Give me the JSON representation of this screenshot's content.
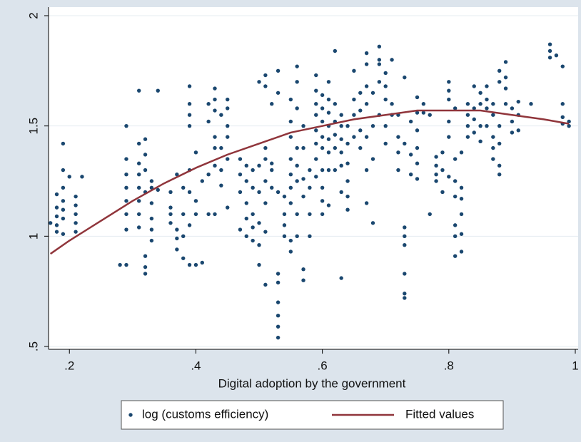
{
  "chart_data": {
    "type": "scatter",
    "xlabel": "Digital adoption by the government",
    "xlim": [
      0.167,
      1.0
    ],
    "ylim": [
      0.5,
      2
    ],
    "xticks": [
      {
        "value": 0.2,
        "label": ".2"
      },
      {
        "value": 0.4,
        "label": ".4"
      },
      {
        "value": 0.6,
        "label": ".6"
      },
      {
        "value": 0.8,
        "label": ".8"
      },
      1
    ],
    "yticks": [
      {
        "value": 0.5,
        "label": ".5"
      },
      1,
      1.5,
      2
    ],
    "grid": true,
    "legend": "bottom",
    "series": [
      {
        "name": "log (customs efficiency)",
        "type": "scatter",
        "color": "#1a476f",
        "x": [
          0.17,
          0.18,
          0.18,
          0.18,
          0.18,
          0.18,
          0.19,
          0.19,
          0.19,
          0.19,
          0.19,
          0.19,
          0.19,
          0.2,
          0.21,
          0.21,
          0.21,
          0.21,
          0.21,
          0.22,
          0.28,
          0.29,
          0.29,
          0.29,
          0.29,
          0.29,
          0.29,
          0.29,
          0.29,
          0.31,
          0.31,
          0.31,
          0.31,
          0.31,
          0.31,
          0.31,
          0.31,
          0.32,
          0.32,
          0.32,
          0.32,
          0.32,
          0.32,
          0.32,
          0.33,
          0.33,
          0.33,
          0.33,
          0.33,
          0.33,
          0.34,
          0.34,
          0.36,
          0.36,
          0.36,
          0.36,
          0.37,
          0.37,
          0.37,
          0.37,
          0.38,
          0.38,
          0.38,
          0.38,
          0.39,
          0.39,
          0.39,
          0.39,
          0.39,
          0.39,
          0.39,
          0.39,
          0.4,
          0.4,
          0.4,
          0.4,
          0.41,
          0.41,
          0.42,
          0.42,
          0.42,
          0.42,
          0.43,
          0.43,
          0.43,
          0.43,
          0.43,
          0.43,
          0.43,
          0.44,
          0.44,
          0.44,
          0.44,
          0.45,
          0.45,
          0.45,
          0.45,
          0.45,
          0.45,
          0.47,
          0.47,
          0.47,
          0.47,
          0.48,
          0.48,
          0.48,
          0.48,
          0.48,
          0.49,
          0.49,
          0.49,
          0.49,
          0.49,
          0.5,
          0.5,
          0.5,
          0.5,
          0.5,
          0.5,
          0.51,
          0.51,
          0.51,
          0.51,
          0.51,
          0.51,
          0.51,
          0.51,
          0.52,
          0.52,
          0.52,
          0.52,
          0.53,
          0.53,
          0.53,
          0.53,
          0.53,
          0.53,
          0.53,
          0.53,
          0.53,
          0.54,
          0.54,
          0.54,
          0.54,
          0.55,
          0.55,
          0.55,
          0.55,
          0.55,
          0.55,
          0.55,
          0.55,
          0.55,
          0.56,
          0.56,
          0.56,
          0.56,
          0.56,
          0.56,
          0.56,
          0.56,
          0.57,
          0.57,
          0.57,
          0.57,
          0.57,
          0.57,
          0.58,
          0.58,
          0.58,
          0.58,
          0.59,
          0.59,
          0.59,
          0.59,
          0.59,
          0.59,
          0.59,
          0.59,
          0.6,
          0.6,
          0.6,
          0.6,
          0.6,
          0.6,
          0.6,
          0.6,
          0.6,
          0.61,
          0.61,
          0.61,
          0.61,
          0.61,
          0.61,
          0.61,
          0.61,
          0.62,
          0.62,
          0.62,
          0.62,
          0.62,
          0.62,
          0.63,
          0.63,
          0.63,
          0.63,
          0.63,
          0.63,
          0.63,
          0.64,
          0.64,
          0.64,
          0.64,
          0.64,
          0.64,
          0.65,
          0.65,
          0.65,
          0.65,
          0.66,
          0.66,
          0.66,
          0.66,
          0.67,
          0.67,
          0.67,
          0.67,
          0.67,
          0.67,
          0.67,
          0.68,
          0.68,
          0.68,
          0.68,
          0.69,
          0.69,
          0.69,
          0.69,
          0.69,
          0.7,
          0.7,
          0.7,
          0.7,
          0.7,
          0.71,
          0.71,
          0.71,
          0.72,
          0.72,
          0.72,
          0.72,
          0.73,
          0.73,
          0.73,
          0.73,
          0.73,
          0.73,
          0.73,
          0.73,
          0.74,
          0.74,
          0.74,
          0.75,
          0.75,
          0.75,
          0.75,
          0.75,
          0.75,
          0.76,
          0.76,
          0.77,
          0.77,
          0.78,
          0.78,
          0.78,
          0.78,
          0.79,
          0.79,
          0.79,
          0.8,
          0.8,
          0.8,
          0.8,
          0.8,
          0.8,
          0.81,
          0.81,
          0.81,
          0.81,
          0.81,
          0.81,
          0.81,
          0.82,
          0.82,
          0.82,
          0.82,
          0.82,
          0.82,
          0.83,
          0.83,
          0.83,
          0.83,
          0.84,
          0.84,
          0.84,
          0.84,
          0.85,
          0.85,
          0.85,
          0.85,
          0.86,
          0.86,
          0.86,
          0.86,
          0.87,
          0.87,
          0.87,
          0.87,
          0.87,
          0.88,
          0.88,
          0.88,
          0.88,
          0.88,
          0.88,
          0.89,
          0.89,
          0.89,
          0.89,
          0.9,
          0.9,
          0.9,
          0.91,
          0.91,
          0.91,
          0.93,
          0.96,
          0.96,
          0.96,
          0.97,
          0.98,
          0.98,
          0.98,
          0.98,
          0.99,
          0.99
        ],
        "values": [
          1.06,
          1.02,
          1.05,
          1.09,
          1.13,
          1.19,
          1.08,
          1.12,
          1.16,
          1.22,
          1.3,
          1.42,
          1.01,
          1.27,
          1.02,
          1.06,
          1.1,
          1.14,
          1.18,
          1.27,
          0.87,
          0.87,
          1.03,
          1.1,
          1.16,
          1.22,
          1.28,
          1.35,
          1.5,
          1.04,
          1.1,
          1.16,
          1.22,
          1.28,
          1.33,
          1.42,
          1.66,
          0.83,
          0.86,
          0.91,
          1.2,
          1.3,
          1.37,
          1.44,
          0.98,
          1.03,
          1.08,
          1.15,
          1.22,
          1.25,
          1.66,
          1.21,
          1.06,
          1.1,
          1.13,
          1.2,
          0.94,
          0.99,
          1.03,
          1.28,
          0.9,
          1.0,
          1.1,
          1.22,
          0.87,
          1.05,
          1.2,
          1.3,
          1.5,
          1.55,
          1.6,
          1.68,
          0.87,
          1.1,
          1.16,
          1.38,
          0.88,
          1.25,
          1.1,
          1.28,
          1.52,
          1.6,
          1.1,
          1.32,
          1.4,
          1.45,
          1.57,
          1.62,
          1.67,
          1.23,
          1.3,
          1.4,
          1.55,
          1.13,
          1.35,
          1.45,
          1.5,
          1.58,
          1.62,
          1.03,
          1.2,
          1.28,
          1.35,
          1.0,
          1.08,
          1.15,
          1.25,
          1.32,
          0.98,
          1.04,
          1.1,
          1.22,
          1.3,
          0.87,
          0.96,
          1.06,
          1.2,
          1.32,
          1.7,
          0.78,
          1.02,
          1.15,
          1.25,
          1.35,
          1.4,
          1.68,
          1.73,
          1.22,
          1.3,
          1.33,
          1.6,
          0.54,
          0.59,
          0.64,
          0.7,
          0.79,
          0.83,
          1.2,
          1.75,
          1.65,
          1.0,
          1.05,
          1.1,
          1.18,
          0.93,
          0.98,
          1.15,
          1.22,
          1.28,
          1.35,
          1.45,
          1.52,
          1.62,
          1.0,
          1.1,
          1.25,
          1.32,
          1.4,
          1.58,
          1.7,
          1.77,
          0.8,
          0.85,
          1.18,
          1.26,
          1.4,
          1.5,
          1.0,
          1.1,
          1.22,
          1.3,
          1.27,
          1.35,
          1.42,
          1.48,
          1.55,
          1.6,
          1.66,
          1.73,
          1.1,
          1.16,
          1.22,
          1.3,
          1.4,
          1.45,
          1.52,
          1.58,
          1.64,
          1.14,
          1.3,
          1.38,
          1.44,
          1.5,
          1.56,
          1.62,
          1.7,
          1.3,
          1.4,
          1.46,
          1.52,
          1.6,
          1.84,
          0.81,
          1.2,
          1.32,
          1.38,
          1.44,
          1.5,
          1.55,
          1.12,
          1.18,
          1.25,
          1.33,
          1.42,
          1.5,
          1.45,
          1.55,
          1.62,
          1.75,
          1.4,
          1.48,
          1.57,
          1.65,
          1.15,
          1.3,
          1.45,
          1.6,
          1.68,
          1.78,
          1.83,
          1.06,
          1.35,
          1.5,
          1.65,
          1.55,
          1.7,
          1.78,
          1.86,
          1.8,
          1.42,
          1.5,
          1.62,
          1.68,
          1.74,
          1.55,
          1.6,
          1.8,
          1.3,
          1.38,
          1.45,
          1.55,
          0.72,
          0.74,
          0.83,
          0.96,
          1.0,
          1.04,
          1.42,
          1.72,
          1.28,
          1.37,
          1.52,
          1.26,
          1.33,
          1.4,
          1.48,
          1.56,
          1.63,
          1.56,
          1.6,
          1.1,
          1.55,
          1.25,
          1.28,
          1.32,
          1.36,
          1.2,
          1.3,
          1.38,
          1.27,
          1.45,
          1.52,
          1.62,
          1.66,
          1.7,
          0.91,
          1.0,
          1.05,
          1.18,
          1.25,
          1.35,
          1.58,
          0.93,
          1.01,
          1.1,
          1.17,
          1.22,
          1.38,
          1.45,
          1.5,
          1.55,
          1.6,
          1.47,
          1.53,
          1.58,
          1.68,
          1.43,
          1.5,
          1.6,
          1.65,
          1.5,
          1.58,
          1.62,
          1.68,
          1.35,
          1.4,
          1.45,
          1.55,
          1.6,
          1.28,
          1.32,
          1.42,
          1.5,
          1.7,
          1.75,
          1.6,
          1.67,
          1.72,
          1.79,
          1.47,
          1.52,
          1.58,
          1.48,
          1.55,
          1.61,
          1.6,
          1.81,
          1.84,
          1.87,
          1.82,
          1.51,
          1.54,
          1.6,
          1.77,
          1.5,
          1.52
        ]
      },
      {
        "name": "Fitted values",
        "type": "line",
        "color": "#90353b",
        "x": [
          0.17,
          0.2,
          0.25,
          0.3,
          0.35,
          0.4,
          0.45,
          0.5,
          0.55,
          0.6,
          0.65,
          0.7,
          0.75,
          0.8,
          0.85,
          0.9,
          0.95,
          0.99
        ],
        "values": [
          0.92,
          0.98,
          1.07,
          1.16,
          1.24,
          1.31,
          1.37,
          1.42,
          1.47,
          1.5,
          1.53,
          1.55,
          1.57,
          1.57,
          1.57,
          1.55,
          1.53,
          1.51
        ]
      }
    ]
  }
}
